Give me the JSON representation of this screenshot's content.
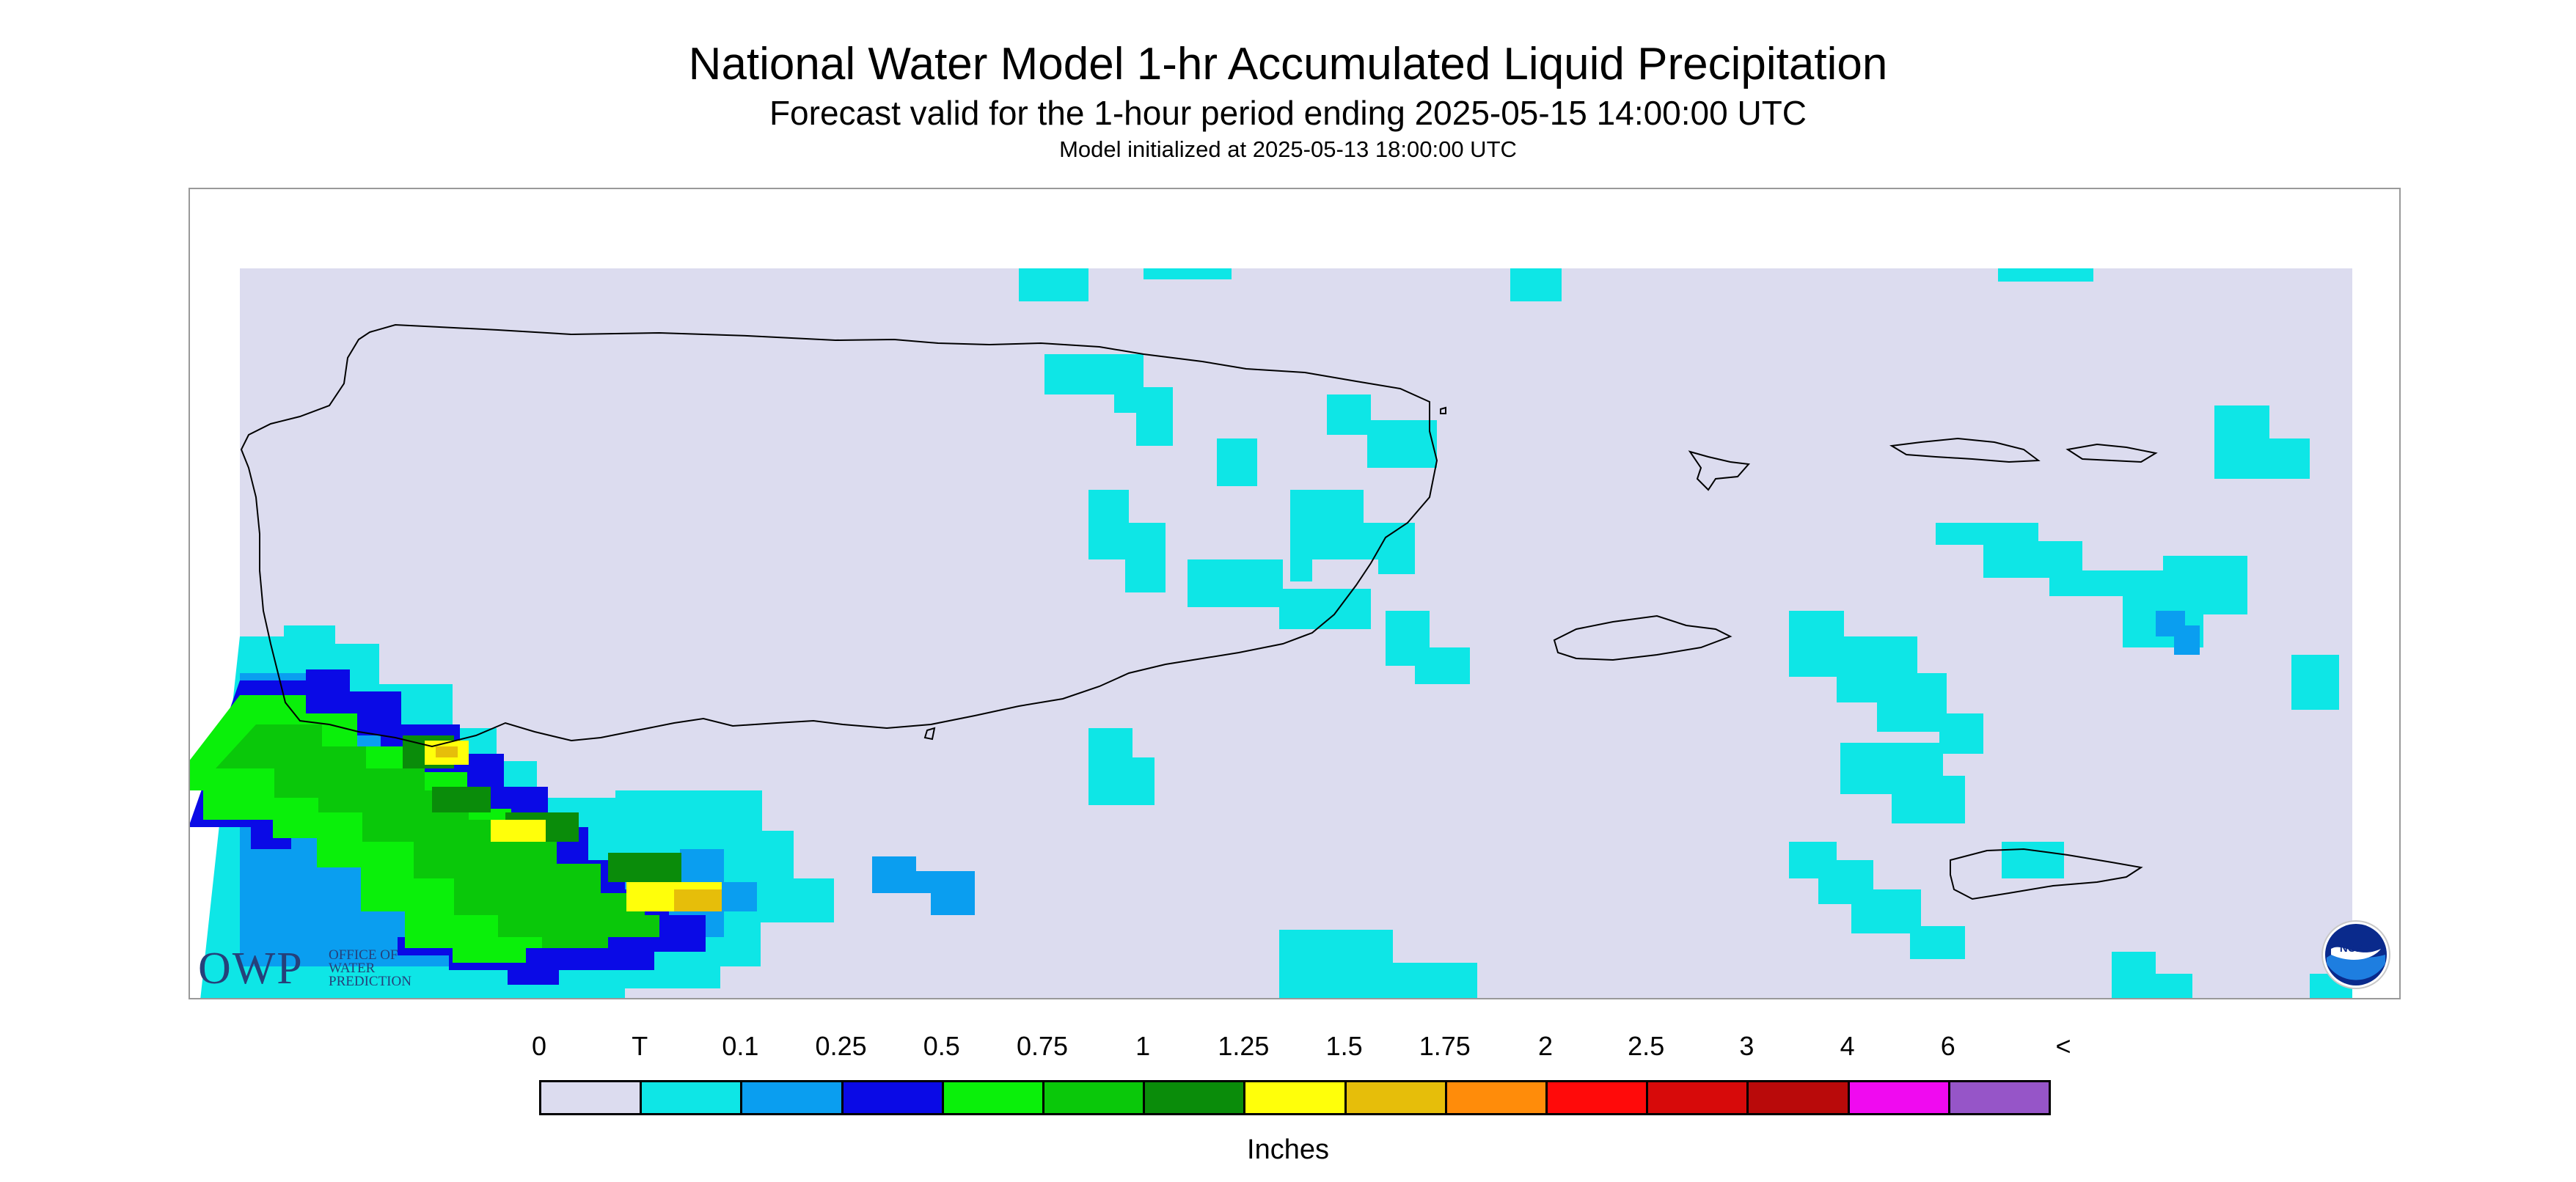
{
  "header": {
    "title": "National Water Model 1-hr Accumulated Liquid Precipitation",
    "subtitle": "Forecast valid for the 1-hour period ending 2025-05-15 14:00:00 UTC",
    "init": "Model initialized at 2025-05-13 18:00:00 UTC"
  },
  "legend": {
    "units": "Inches",
    "ticks": [
      "0",
      "T",
      "0.1",
      "0.25",
      "0.5",
      "0.75",
      "1",
      "1.25",
      "1.5",
      "1.75",
      "2",
      "2.5",
      "3",
      "4",
      "6",
      "<"
    ],
    "colors": [
      "#dcdcef",
      "#0ee6e6",
      "#0a9ef0",
      "#0a0ae6",
      "#0af00a",
      "#0ac80a",
      "#0a8c0a",
      "#ffff0a",
      "#e6be0a",
      "#ff8c0a",
      "#ff0a0a",
      "#d70a0a",
      "#b90a0a",
      "#f00af0",
      "#9655c8"
    ]
  },
  "logos": {
    "owp_text": "OWP",
    "owp_small": [
      "OFFICE OF",
      "WATER",
      "PREDICTION"
    ],
    "noaa_text": "NOAA"
  }
}
